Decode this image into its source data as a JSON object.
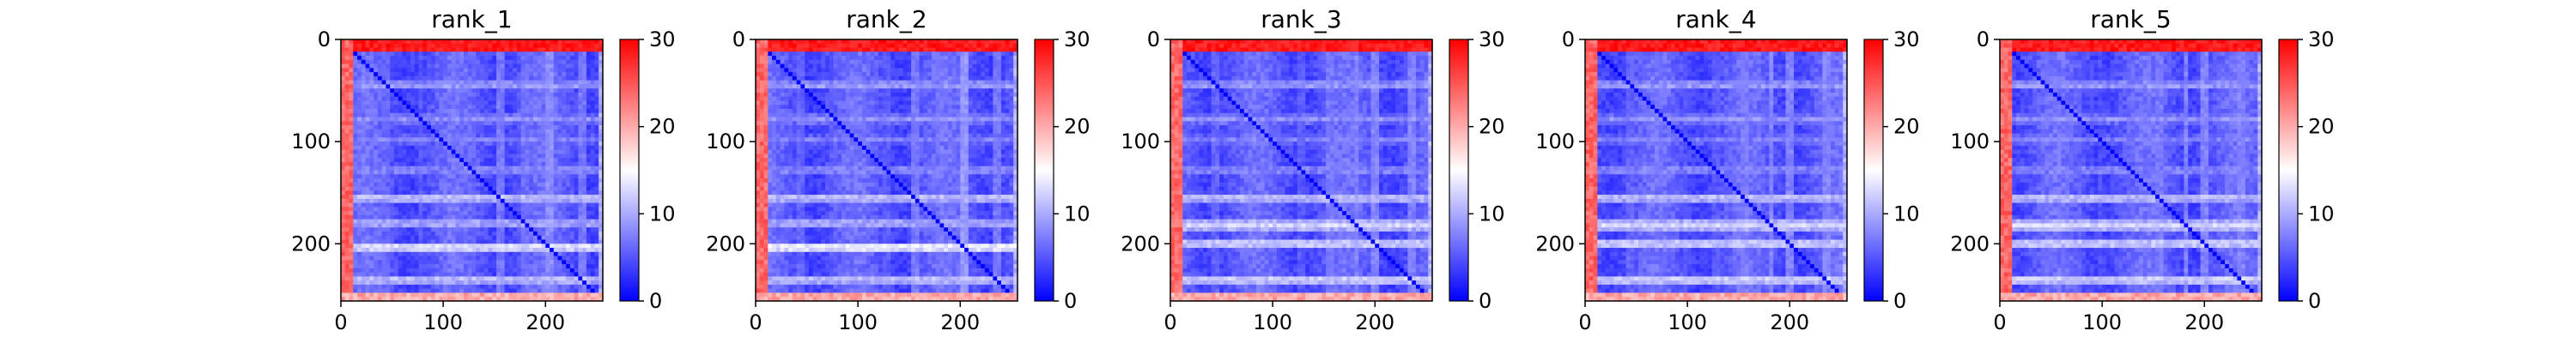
{
  "chart_data": [
    {
      "type": "heatmap",
      "title": "rank_1",
      "xlabel": "",
      "ylabel": "",
      "xlim": [
        0,
        256
      ],
      "ylim": [
        256,
        0
      ],
      "x_ticks": [
        0,
        100,
        200
      ],
      "y_ticks": [
        0,
        100,
        200
      ],
      "colorbar": {
        "range": [
          0,
          30
        ],
        "ticks": [
          0,
          10,
          20,
          30
        ],
        "colormap": "bwr"
      },
      "pattern": {
        "matrix_size": 256,
        "background_value": 4,
        "diagonal_value": 0,
        "first_rows_value": 30,
        "first_cols_value": 26,
        "last_row_value": 22,
        "band_rows": [
          [
            45,
            8
          ],
          [
            78,
            7
          ],
          [
            98,
            6
          ],
          [
            128,
            7
          ],
          [
            155,
            10
          ],
          [
            180,
            9
          ],
          [
            203,
            12
          ],
          [
            235,
            10
          ]
        ]
      }
    },
    {
      "type": "heatmap",
      "title": "rank_2",
      "xlabel": "",
      "ylabel": "",
      "xlim": [
        0,
        256
      ],
      "ylim": [
        256,
        0
      ],
      "x_ticks": [
        0,
        100,
        200
      ],
      "y_ticks": [
        0,
        100,
        200
      ],
      "colorbar": {
        "range": [
          0,
          30
        ],
        "ticks": [
          0,
          10,
          20,
          30
        ],
        "colormap": "bwr"
      },
      "pattern": {
        "matrix_size": 256,
        "background_value": 4,
        "diagonal_value": 0,
        "first_rows_value": 30,
        "first_cols_value": 26,
        "last_row_value": 22,
        "band_rows": [
          [
            45,
            8
          ],
          [
            78,
            7
          ],
          [
            98,
            6
          ],
          [
            128,
            7
          ],
          [
            155,
            10
          ],
          [
            180,
            9
          ],
          [
            203,
            13
          ],
          [
            235,
            10
          ]
        ]
      }
    },
    {
      "type": "heatmap",
      "title": "rank_3",
      "xlabel": "",
      "ylabel": "",
      "xlim": [
        0,
        256
      ],
      "ylim": [
        256,
        0
      ],
      "x_ticks": [
        0,
        100,
        200
      ],
      "y_ticks": [
        0,
        100,
        200
      ],
      "colorbar": {
        "range": [
          0,
          30
        ],
        "ticks": [
          0,
          10,
          20,
          30
        ],
        "colormap": "bwr"
      },
      "pattern": {
        "matrix_size": 256,
        "background_value": 4,
        "diagonal_value": 0,
        "first_rows_value": 30,
        "first_cols_value": 26,
        "last_row_value": 22,
        "band_rows": [
          [
            45,
            8
          ],
          [
            78,
            7
          ],
          [
            98,
            6
          ],
          [
            128,
            7
          ],
          [
            155,
            10
          ],
          [
            182,
            11
          ],
          [
            200,
            11
          ],
          [
            235,
            11
          ]
        ]
      }
    },
    {
      "type": "heatmap",
      "title": "rank_4",
      "xlabel": "",
      "ylabel": "",
      "xlim": [
        0,
        256
      ],
      "ylim": [
        256,
        0
      ],
      "x_ticks": [
        0,
        100,
        200
      ],
      "y_ticks": [
        0,
        100,
        200
      ],
      "colorbar": {
        "range": [
          0,
          30
        ],
        "ticks": [
          0,
          10,
          20,
          30
        ],
        "colormap": "bwr"
      },
      "pattern": {
        "matrix_size": 256,
        "background_value": 4,
        "diagonal_value": 0,
        "first_rows_value": 30,
        "first_cols_value": 26,
        "last_row_value": 22,
        "band_rows": [
          [
            45,
            8
          ],
          [
            78,
            7
          ],
          [
            98,
            6
          ],
          [
            128,
            7
          ],
          [
            155,
            10
          ],
          [
            182,
            11
          ],
          [
            200,
            11
          ],
          [
            235,
            11
          ]
        ]
      }
    },
    {
      "type": "heatmap",
      "title": "rank_5",
      "xlabel": "",
      "ylabel": "",
      "xlim": [
        0,
        256
      ],
      "ylim": [
        256,
        0
      ],
      "x_ticks": [
        0,
        100,
        200
      ],
      "y_ticks": [
        0,
        100,
        200
      ],
      "colorbar": {
        "range": [
          0,
          30
        ],
        "ticks": [
          0,
          10,
          20,
          30
        ],
        "colormap": "bwr"
      },
      "pattern": {
        "matrix_size": 256,
        "background_value": 4,
        "diagonal_value": 0,
        "first_rows_value": 30,
        "first_cols_value": 26,
        "last_row_value": 22,
        "band_rows": [
          [
            45,
            8
          ],
          [
            78,
            7
          ],
          [
            98,
            6
          ],
          [
            128,
            7
          ],
          [
            155,
            10
          ],
          [
            182,
            11
          ],
          [
            200,
            11
          ],
          [
            235,
            11
          ]
        ]
      }
    }
  ]
}
